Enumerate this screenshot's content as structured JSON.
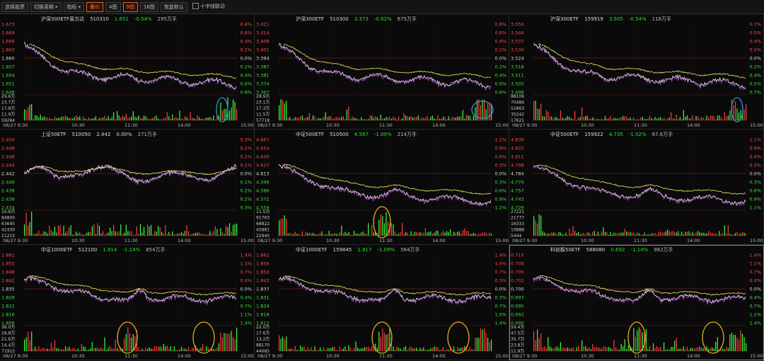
{
  "toolbar": [
    {
      "label": "选择股票",
      "caret": false,
      "active": false
    },
    {
      "label": "切换周期",
      "caret": true,
      "active": false
    },
    {
      "label": "指标",
      "caret": true,
      "active": false
    },
    {
      "label": "叠价",
      "caret": false,
      "active": true
    },
    {
      "label": "4图",
      "caret": false,
      "active": false
    },
    {
      "label": "9图",
      "caret": false,
      "active": true
    },
    {
      "label": "16图",
      "caret": false,
      "active": false
    },
    {
      "label": "恢复默认",
      "caret": false,
      "active": false
    },
    {
      "label": "十字线联动",
      "caret": false,
      "active": false,
      "checkbox": true
    }
  ],
  "time_ticks": [
    "08/27 9:30",
    "10:30",
    "11:30",
    "14:00",
    "15:00"
  ],
  "colors": {
    "price_line": "#e8e8e8",
    "avg_line": "#e8e860",
    "overlay_line": "#b050d0",
    "up": "#ff4040",
    "down": "#40ff40",
    "grid": "#3a1010",
    "annot_blue": "#3a8fe0",
    "annot_gold": "#e0b020"
  },
  "panels": [
    {
      "name": "沪深300ETF易方达",
      "code": "510310",
      "price": "1.651",
      "pct": "-0.54%",
      "volume": "295万手",
      "left_ticks": [
        "1.673",
        "1.669",
        "1.666",
        "1.663",
        "1.660",
        "1.657",
        "1.654",
        "1.651",
        "1.648"
      ],
      "right_ticks": [
        "0.8%",
        "0.6%",
        "0.4%",
        "0.2%",
        "0.0%",
        "0.2%",
        "0.4%",
        "0.6%",
        "0.8%"
      ],
      "vol_ticks": [
        "29.6万",
        "23.7万",
        "17.8万",
        "11.9万",
        "59284"
      ],
      "shape": "down1",
      "annotation": "blue",
      "annot_pos": "right"
    },
    {
      "name": "沪深300ETF",
      "code": "510300",
      "price": "3.373",
      "pct": "-0.62%",
      "volume": "675万手",
      "left_ticks": [
        "3.421",
        "3.414",
        "3.408",
        "3.401",
        "3.394",
        "3.387",
        "3.381",
        "3.374",
        "3.367"
      ],
      "right_ticks": [
        "0.8%",
        "0.6%",
        "0.4%",
        "0.2%",
        "0.0%",
        "0.2%",
        "0.4%",
        "0.6%",
        "0.8%"
      ],
      "vol_ticks": [
        "28.9万",
        "23.1万",
        "17.3万",
        "11.5万",
        "57718"
      ],
      "shape": "down1",
      "annotation": "blue",
      "annot_pos": "right"
    },
    {
      "name": "沪深300ETF",
      "code": "159919",
      "price": "3.505",
      "pct": "-0.54%",
      "volume": "118万手",
      "left_ticks": [
        "3.550",
        "3.544",
        "3.537",
        "3.530",
        "3.524",
        "3.518",
        "3.511",
        "3.505",
        "3.498"
      ],
      "right_ticks": [
        "0.7%",
        "0.5%",
        "0.4%",
        "0.2%",
        "0.0%",
        "0.2%",
        "0.4%",
        "0.5%",
        "0.7%"
      ],
      "vol_ticks": [
        "88106",
        "70484",
        "52863",
        "35242",
        "17621"
      ],
      "shape": "down1",
      "annotation": "blue",
      "annot_pos": "right"
    },
    {
      "name": "上证50ETF",
      "code": "510050",
      "price": "2.442",
      "pct": "0.00%",
      "volume": "271万手",
      "left_ticks": [
        "2.450",
        "2.448",
        "2.446",
        "2.444",
        "2.442",
        "2.440",
        "2.438",
        "2.436",
        "2.434"
      ],
      "right_ticks": [
        "0.3%",
        "0.2%",
        "0.2%",
        "0.1%",
        "0.0%",
        "0.1%",
        "0.2%",
        "0.2%",
        "0.3%"
      ],
      "vol_ticks": [
        "10.6万",
        "84800",
        "63645",
        "42430",
        "21215"
      ],
      "shape": "flat",
      "annotation": "none",
      "annot_pos": "none"
    },
    {
      "name": "中证500ETF",
      "code": "510500",
      "price": "4.567",
      "pct": "-1.00%",
      "volume": "214万手",
      "left_ticks": [
        "4.667",
        "4.654",
        "4.640",
        "4.627",
        "4.613",
        "4.599",
        "4.586",
        "4.572",
        "4.559"
      ],
      "right_ticks": [
        "1.2%",
        "0.9%",
        "0.6%",
        "0.3%",
        "0.0%",
        "0.3%",
        "0.6%",
        "0.9%",
        "1.2%"
      ],
      "vol_ticks": [
        "11.5万",
        "91763",
        "68822",
        "45881",
        "22940"
      ],
      "shape": "down2",
      "annotation": "gold",
      "annot_pos": "mid"
    },
    {
      "name": "中证500ETF",
      "code": "159922",
      "price": "4.735",
      "pct": "-1.02%",
      "volume": "67.6万手",
      "left_ticks": [
        "4.839",
        "4.825",
        "4.811",
        "4.798",
        "4.784",
        "4.770",
        "4.757",
        "4.743",
        "4.729"
      ],
      "right_ticks": [
        "1.1%",
        "0.9%",
        "0.6%",
        "0.3%",
        "0.0%",
        "0.3%",
        "0.6%",
        "0.9%",
        "1.1%"
      ],
      "vol_ticks": [
        "27221",
        "21777",
        "16333",
        "10888",
        "5444"
      ],
      "shape": "down2",
      "annotation": "none",
      "annot_pos": "none"
    },
    {
      "name": "中证1000ETF",
      "code": "512100",
      "price": "1.814",
      "pct": "-1.14%",
      "volume": "854万手",
      "left_ticks": [
        "1.861",
        "1.855",
        "1.848",
        "1.842",
        "1.835",
        "1.829",
        "1.822",
        "1.816",
        "1.809"
      ],
      "right_ticks": [
        "1.4%",
        "1.1%",
        "0.7%",
        "0.4%",
        "0.0%",
        "0.4%",
        "0.7%",
        "1.1%",
        "1.4%"
      ],
      "vol_ticks": [
        "36.0万",
        "28.8万",
        "21.6万",
        "14.4万",
        "71915"
      ],
      "shape": "down3",
      "annotation": "gold",
      "annot_pos": "both"
    },
    {
      "name": "中证1000ETF",
      "code": "159845",
      "price": "1.817",
      "pct": "-1.09%",
      "volume": "564万手",
      "left_ticks": [
        "1.862",
        "1.856",
        "1.850",
        "1.843",
        "1.837",
        "1.831",
        "1.824",
        "1.818",
        "1.812"
      ],
      "right_ticks": [
        "1.4%",
        "1.0%",
        "0.7%",
        "0.3%",
        "0.0%",
        "0.3%",
        "0.7%",
        "1.0%",
        "1.4%"
      ],
      "vol_ticks": [
        "22.0万",
        "17.6万",
        "13.2万",
        "88170",
        "44085"
      ],
      "shape": "down3",
      "annotation": "gold",
      "annot_pos": "both"
    },
    {
      "name": "科创板50ETF",
      "code": "588080",
      "price": "0.692",
      "pct": "-1.14%",
      "volume": "982万手",
      "left_ticks": [
        "0.710",
        "0.708",
        "0.705",
        "0.702",
        "0.700",
        "0.697",
        "0.695",
        "0.692",
        "0.690"
      ],
      "right_ticks": [
        "1.4%",
        "1.1%",
        "0.7%",
        "0.4%",
        "0.0%",
        "0.4%",
        "0.7%",
        "1.1%",
        "1.4%"
      ],
      "vol_ticks": [
        "59.4万",
        "47.5万",
        "35.7万",
        "23.8万",
        "11.9万"
      ],
      "shape": "down3",
      "annotation": "gold",
      "annot_pos": "both"
    }
  ]
}
